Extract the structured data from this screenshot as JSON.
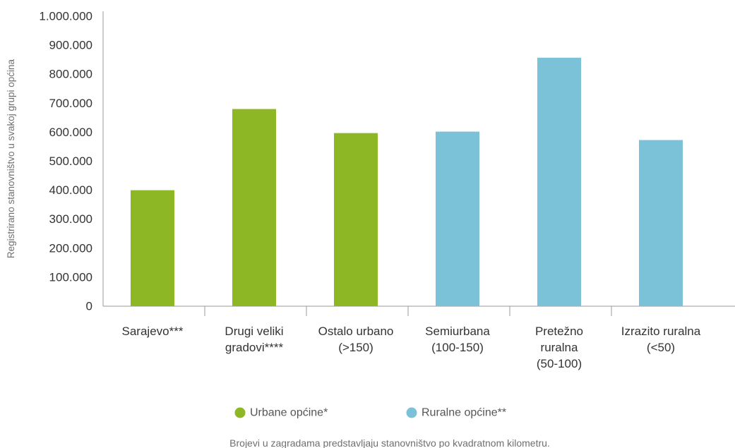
{
  "chart_data": {
    "type": "bar",
    "ylabel": "Registrirano stanovništvo u svakoj grupi općina",
    "xlabel": "",
    "ylim": [
      0,
      1000000
    ],
    "yticks": [
      {
        "value": 0,
        "label": "0"
      },
      {
        "value": 100000,
        "label": "100.000"
      },
      {
        "value": 200000,
        "label": "200.000"
      },
      {
        "value": 300000,
        "label": "300.000"
      },
      {
        "value": 400000,
        "label": "400.000"
      },
      {
        "value": 500000,
        "label": "500.000"
      },
      {
        "value": 600000,
        "label": "600.000"
      },
      {
        "value": 700000,
        "label": "700.000"
      },
      {
        "value": 800000,
        "label": "800.000"
      },
      {
        "value": 900000,
        "label": "900.000"
      },
      {
        "value": 1000000,
        "label": "1.000.000"
      }
    ],
    "categories": [
      {
        "lines": [
          "Sarajevo***"
        ],
        "value": 400000,
        "group": "urban"
      },
      {
        "lines": [
          "Drugi veliki",
          "gradovi****"
        ],
        "value": 680000,
        "group": "urban"
      },
      {
        "lines": [
          "Ostalo urbano",
          "(>150)"
        ],
        "value": 597000,
        "group": "urban"
      },
      {
        "lines": [
          "Semiurbana",
          "(100-150)"
        ],
        "value": 602000,
        "group": "rural"
      },
      {
        "lines": [
          "Pretežno",
          "ruralna",
          "(50-100)"
        ],
        "value": 857000,
        "group": "rural"
      },
      {
        "lines": [
          "Izrazito ruralna",
          "(<50)"
        ],
        "value": 573000,
        "group": "rural"
      }
    ],
    "legend": [
      {
        "key": "urban",
        "label": "Urbane općine*",
        "color": "#8db724"
      },
      {
        "key": "rural",
        "label": "Ruralne općine**",
        "color": "#7bc1d8"
      }
    ],
    "grid": false,
    "legend_position": "bottom-center",
    "footnote": "Brojevi u zagradama predstavljaju stanovništvo po kvadratnom kilometru."
  }
}
